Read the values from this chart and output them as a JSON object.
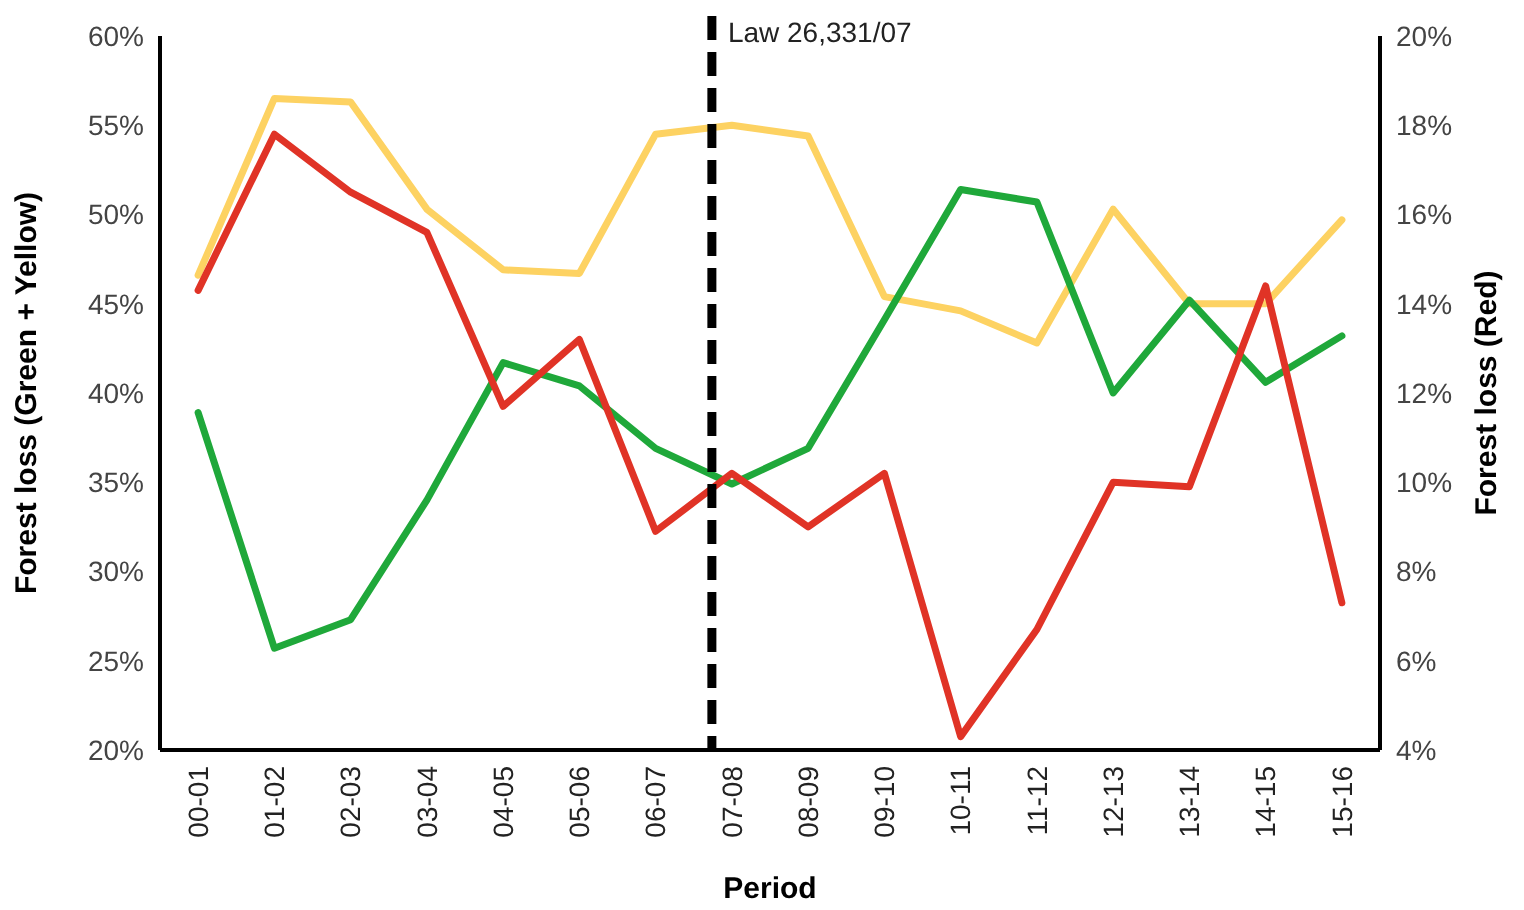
{
  "chart_data": {
    "type": "line",
    "xlabel": "Period",
    "ylabel": "Forest loss (Green + Yellow)",
    "y2label": "Forest loss (Red)",
    "categories": [
      "00-01",
      "01-02",
      "02-03",
      "03-04",
      "04-05",
      "05-06",
      "06-07",
      "07-08",
      "08-09",
      "09-10",
      "10-11",
      "11-12",
      "12-13",
      "13-14",
      "14-15",
      "15-16"
    ],
    "series": [
      {
        "color": "#fdd262",
        "values": [
          46.6,
          56.5,
          56.3,
          50.3,
          46.9,
          46.7,
          54.5,
          55.0,
          54.4,
          45.4,
          44.6,
          42.8,
          50.3,
          45.0,
          45.0,
          49.7
        ]
      },
      {
        "color": "#1fa83a",
        "values": [
          38.9,
          25.7,
          27.3,
          34.0,
          41.7,
          40.4,
          36.9,
          34.9,
          36.9,
          44.1,
          51.4,
          50.7,
          40.0,
          45.2,
          40.6,
          43.2
        ]
      },
      {
        "color": "#e03326",
        "axis": "y2",
        "values": [
          14.3,
          17.8,
          16.5,
          15.6,
          11.7,
          13.2,
          8.9,
          10.2,
          9.0,
          10.2,
          4.3,
          6.7,
          10.0,
          9.9,
          14.4,
          7.3
        ]
      }
    ],
    "ylim": [
      20,
      60
    ],
    "yticks": [
      {
        "value": 20,
        "label": "20%"
      },
      {
        "value": 25,
        "label": "25%"
      },
      {
        "value": 30,
        "label": "30%"
      },
      {
        "value": 35,
        "label": "35%"
      },
      {
        "value": 40,
        "label": "40%"
      },
      {
        "value": 45,
        "label": "45%"
      },
      {
        "value": 50,
        "label": "50%"
      },
      {
        "value": 55,
        "label": "55%"
      },
      {
        "value": 60,
        "label": "60%"
      }
    ],
    "y2lim": [
      4,
      20
    ],
    "y2ticks": [
      {
        "value": 4,
        "label": "4%"
      },
      {
        "value": 6,
        "label": "6%"
      },
      {
        "value": 8,
        "label": "8%"
      },
      {
        "value": 10,
        "label": "10%"
      },
      {
        "value": 12,
        "label": "12%"
      },
      {
        "value": 14,
        "label": "14%"
      },
      {
        "value": 16,
        "label": "16%"
      },
      {
        "value": 18,
        "label": "18%"
      },
      {
        "value": 20,
        "label": "20%"
      }
    ],
    "ref_lines": [
      {
        "axis": "x",
        "value": "07-08",
        "label": "Law 26,331/07",
        "color": "#000000",
        "line_style": "dashed"
      }
    ],
    "grid": false,
    "line_style": "solid"
  }
}
